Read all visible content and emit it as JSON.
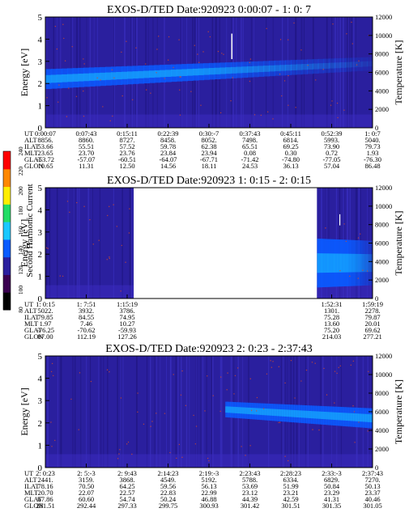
{
  "colors": {
    "background": "#2a1f9e",
    "band": "#0a5bff",
    "band_core": "#19c8ff",
    "noise": "#d64a2a",
    "white_streak": "#ffffff"
  },
  "colorbar": {
    "label": "Second Harmonic Current",
    "ticks": [
      "80",
      "100",
      "120",
      "140",
      "160",
      "180",
      "200",
      "220",
      "240"
    ],
    "stops": [
      "#000000",
      "#3a0050",
      "#2a1f9e",
      "#0a5bff",
      "#19c8ff",
      "#22dd66",
      "#ffee00",
      "#ff8800",
      "#ff0000"
    ]
  },
  "chart_data": [
    {
      "type": "heatmap",
      "title": "EXOS-D/TED   Date:920923  0:00:07 - 1: 0: 7",
      "ylabel": "Energy [eV]",
      "ylabel_right": "Temperature [K]",
      "y_ticks": [
        "0",
        "1",
        "2",
        "3",
        "4",
        "5"
      ],
      "y_right_ticks": [
        "0",
        "2000",
        "4000",
        "6000",
        "8000",
        "10000",
        "12000"
      ],
      "ylim": [
        0,
        5
      ],
      "ylim_right": [
        0,
        12000
      ],
      "data_present": [
        [
          0,
          1
        ]
      ],
      "band": {
        "from": 0.0,
        "to": 1.0,
        "center_start": 2.2,
        "center_end": 2.9,
        "width_start": 0.9,
        "width_end": 0.6,
        "fade_after": 0.45
      },
      "x_ticks": [
        "0:00:07",
        "0:07:43",
        "0:15:11",
        "0:22:39",
        "0:30:-7",
        "0:37:43",
        "0:45:11",
        "0:52:39",
        "1: 0:7"
      ],
      "table": [
        {
          "label": "UT",
          "values": [
            "0:00:07",
            "0:07:43",
            "0:15:11",
            "0:22:39",
            "0:30:-7",
            "0:37:43",
            "0:45:11",
            "0:52:39",
            "1: 0:7"
          ]
        },
        {
          "label": "ALT",
          "values": [
            "8856.",
            "8860.",
            "8727.",
            "8458.",
            "8052.",
            "7498.",
            "6814.",
            "5993.",
            "5040."
          ]
        },
        {
          "label": "ILAT",
          "values": [
            "53.66",
            "55.51",
            "57.52",
            "59.78",
            "62.38",
            "65.51",
            "69.25",
            "73.90",
            "79.73"
          ]
        },
        {
          "label": "MLT",
          "values": [
            "23.65",
            "23.70",
            "23.76",
            "23.84",
            "23.94",
            "0.08",
            "0.30",
            "0.72",
            "1.93"
          ]
        },
        {
          "label": "GLAT",
          "values": [
            "-53.72",
            "-57.07",
            "-60.51",
            "-64.07",
            "-67.71",
            "-71.42",
            "-74.80",
            "-77.05",
            "-76.30"
          ]
        },
        {
          "label": "GLON",
          "values": [
            "10.65",
            "11.31",
            "12.50",
            "14.56",
            "18.11",
            "24.53",
            "36.13",
            "57.04",
            "86.48"
          ]
        }
      ]
    },
    {
      "type": "heatmap",
      "title": "EXOS-D/TED   Date:920923  1: 0:15 - 2: 0:15",
      "ylabel": "Energy [eV]",
      "ylabel_right": "Temperature [K]",
      "y_ticks": [
        "0",
        "1",
        "2",
        "3",
        "4",
        "5"
      ],
      "y_right_ticks": [
        "0",
        "2000",
        "4000",
        "6000",
        "8000",
        "10000",
        "12000"
      ],
      "ylim": [
        0,
        5
      ],
      "ylim_right": [
        0,
        12000
      ],
      "data_present": [
        [
          0,
          0.27
        ],
        [
          0.83,
          1
        ]
      ],
      "band": {
        "from": 0.83,
        "to": 1.0,
        "center_start": 1.6,
        "center_end": 1.6,
        "width_start": 2.2,
        "width_end": 2.0,
        "fade_after": 0.5
      },
      "x_ticks": [
        "1: 0:15",
        "1: 7:51",
        "1:15:19",
        "",
        "",
        "",
        "",
        "1:52:31",
        "1:59:19"
      ],
      "table": [
        {
          "label": "UT",
          "values": [
            "1: 0:15",
            "1: 7:51",
            "1:15:19",
            "",
            "",
            "",
            "",
            "1:52:31",
            "1:59:19"
          ]
        },
        {
          "label": "ALT",
          "values": [
            "5022.",
            "3932.",
            "3786.",
            "",
            "",
            "",
            "",
            "1301.",
            "2278."
          ]
        },
        {
          "label": "ILAT",
          "values": [
            "79.85",
            "84.55",
            "74.95",
            "",
            "",
            "",
            "",
            "75.28",
            "79.87"
          ]
        },
        {
          "label": "MLT",
          "values": [
            "1.97",
            "7.46",
            "10.27",
            "",
            "",
            "",
            "",
            "13.60",
            "20.01"
          ]
        },
        {
          "label": "GLAT",
          "values": [
            "-76.25",
            "-70.62",
            "-59.93",
            "",
            "",
            "",
            "",
            "75.20",
            "69.62"
          ]
        },
        {
          "label": "GLON",
          "values": [
            "87.00",
            "112.19",
            "127.26",
            "",
            "",
            "",
            "",
            "214.03",
            "277.21"
          ]
        }
      ]
    },
    {
      "type": "heatmap",
      "title": "EXOS-D/TED   Date:920923  2: 0:23 - 2:37:43",
      "ylabel": "Energy [eV]",
      "ylabel_right": "Temperature [K]",
      "y_ticks": [
        "0",
        "1",
        "2",
        "3",
        "4",
        "5"
      ],
      "y_right_ticks": [
        "0",
        "2000",
        "4000",
        "6000",
        "8000",
        "10000",
        "12000"
      ],
      "ylim": [
        0,
        5
      ],
      "ylim_right": [
        0,
        12000
      ],
      "data_present": [
        [
          0,
          1
        ]
      ],
      "band": {
        "from": 0.55,
        "to": 1.0,
        "center_start": 2.6,
        "center_end": 2.2,
        "width_start": 0.7,
        "width_end": 0.9,
        "fade_after": 0.0
      },
      "x_ticks": [
        "2: 0:23",
        "2: 5:-3",
        "2: 9:43",
        "2:14:23",
        "2:19:-3",
        "2:23:43",
        "2:28:23",
        "2:33:-3",
        "2:37:43"
      ],
      "table": [
        {
          "label": "UT",
          "values": [
            "2: 0:23",
            "2: 5:-3",
            "2: 9:43",
            "2:14:23",
            "2:19:-3",
            "2:23:43",
            "2:28:23",
            "2:33:-3",
            "2:37:43"
          ]
        },
        {
          "label": "ALT",
          "values": [
            "2441.",
            "3159.",
            "3868.",
            "4549.",
            "5192.",
            "5788.",
            "6334.",
            "6829.",
            "7270."
          ]
        },
        {
          "label": "ILAT",
          "values": [
            "78.16",
            "70.50",
            "64.25",
            "59.56",
            "56.13",
            "53.69",
            "51.99",
            "50.84",
            "50.13"
          ]
        },
        {
          "label": "MLT",
          "values": [
            "20.70",
            "22.07",
            "22.57",
            "22.83",
            "22.99",
            "23.12",
            "23.21",
            "23.29",
            "23.37"
          ]
        },
        {
          "label": "GLAT",
          "values": [
            "67.86",
            "60.60",
            "54.74",
            "50.24",
            "46.88",
            "44.39",
            "42.59",
            "41.31",
            "40.46"
          ]
        },
        {
          "label": "GLON",
          "values": [
            "281.51",
            "292.44",
            "297.33",
            "299.75",
            "300.93",
            "301.42",
            "301.51",
            "301.35",
            "301.05"
          ]
        }
      ]
    }
  ]
}
